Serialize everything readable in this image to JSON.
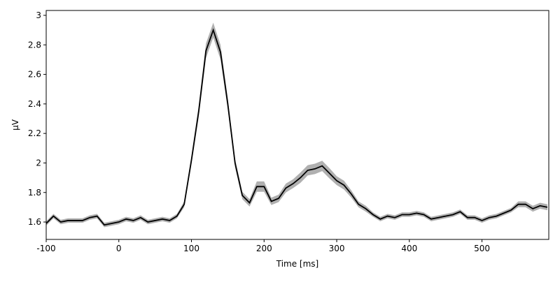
{
  "chart_data": {
    "type": "line",
    "xlabel": "Time [ms]",
    "ylabel": "µV",
    "x": [
      -100,
      -90,
      -80,
      -70,
      -60,
      -50,
      -40,
      -30,
      -20,
      -10,
      0,
      10,
      20,
      30,
      40,
      50,
      60,
      70,
      80,
      90,
      100,
      110,
      120,
      130,
      140,
      150,
      160,
      170,
      180,
      190,
      200,
      210,
      220,
      230,
      240,
      250,
      260,
      270,
      280,
      290,
      300,
      310,
      320,
      330,
      340,
      350,
      360,
      370,
      380,
      390,
      400,
      410,
      420,
      430,
      440,
      450,
      460,
      470,
      480,
      490,
      500,
      510,
      520,
      530,
      540,
      550,
      560,
      570,
      580,
      590
    ],
    "values": [
      1.59,
      1.64,
      1.6,
      1.61,
      1.61,
      1.61,
      1.63,
      1.64,
      1.58,
      1.59,
      1.6,
      1.62,
      1.61,
      1.63,
      1.6,
      1.61,
      1.62,
      1.61,
      1.64,
      1.72,
      2.02,
      2.35,
      2.76,
      2.9,
      2.75,
      2.4,
      2.0,
      1.78,
      1.73,
      1.84,
      1.84,
      1.74,
      1.76,
      1.83,
      1.86,
      1.9,
      1.95,
      1.96,
      1.98,
      1.93,
      1.88,
      1.85,
      1.79,
      1.72,
      1.69,
      1.65,
      1.62,
      1.64,
      1.63,
      1.65,
      1.65,
      1.66,
      1.65,
      1.62,
      1.63,
      1.64,
      1.65,
      1.67,
      1.63,
      1.63,
      1.61,
      1.63,
      1.64,
      1.66,
      1.68,
      1.72,
      1.72,
      1.69,
      1.71,
      1.7
    ],
    "error": [
      0.015,
      0.015,
      0.015,
      0.015,
      0.015,
      0.015,
      0.015,
      0.015,
      0.015,
      0.015,
      0.015,
      0.015,
      0.015,
      0.015,
      0.015,
      0.015,
      0.015,
      0.015,
      0.015,
      0.02,
      0.03,
      0.04,
      0.05,
      0.05,
      0.05,
      0.04,
      0.03,
      0.025,
      0.025,
      0.035,
      0.035,
      0.025,
      0.025,
      0.03,
      0.03,
      0.035,
      0.035,
      0.035,
      0.035,
      0.035,
      0.03,
      0.03,
      0.025,
      0.02,
      0.02,
      0.015,
      0.015,
      0.015,
      0.015,
      0.015,
      0.015,
      0.015,
      0.015,
      0.015,
      0.015,
      0.015,
      0.015,
      0.015,
      0.015,
      0.015,
      0.015,
      0.015,
      0.015,
      0.015,
      0.015,
      0.02,
      0.02,
      0.02,
      0.02,
      0.02
    ],
    "color": "#000000",
    "band_color": "#b0b0b0",
    "xlim": [
      -100,
      592
    ],
    "ylim": [
      1.482,
      3.033
    ],
    "xticks": [
      -100,
      0,
      100,
      200,
      300,
      400,
      500
    ],
    "yticks": [
      1.6,
      1.8,
      2,
      2.2,
      2.4,
      2.6,
      2.8,
      3
    ]
  }
}
